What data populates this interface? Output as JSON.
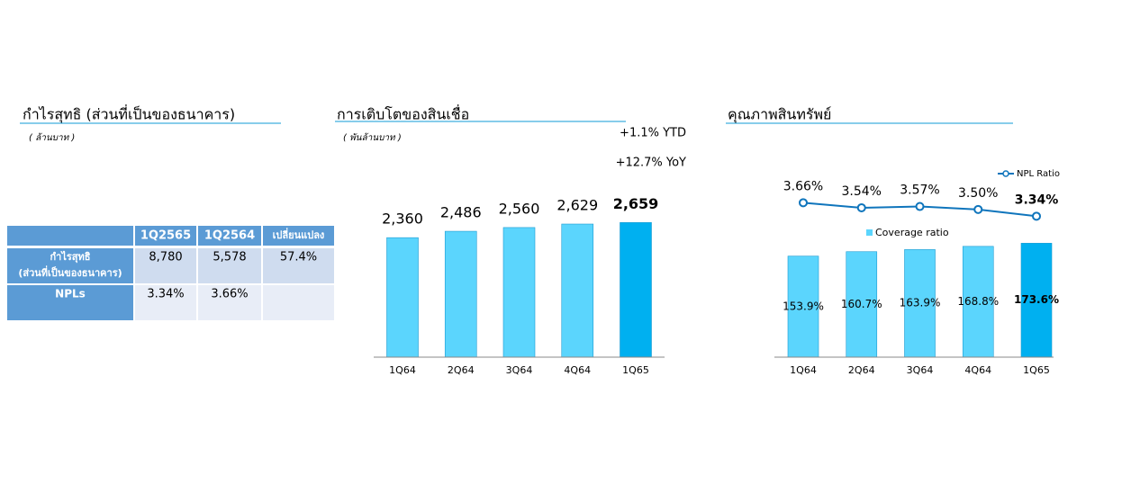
{
  "summary": {
    "title": "กำไรสุทธิ (ส่วนที่เป็นของธนาคาร)",
    "unit": "( ล้านบาท )",
    "table": {
      "header": [
        "1Q2565",
        "1Q2564",
        "เปลี่ยนแปลง"
      ],
      "rows": [
        [
          [
            "กำไรสุทธิ",
            "(ส่วนที่เป็นของธนาคาร)"
          ],
          "8,780",
          "5,578",
          "57.4%"
        ],
        [
          "NPLs",
          "3.34%",
          "3.66%"
        ]
      ]
    }
  },
  "chart_data": [
    {
      "type": "bar",
      "title": "การเติบโตของสินเชื่อ",
      "subtitle": "( พันล้านบาท )",
      "annotations": [
        "+1.1%  YTD",
        "+12.7%  YoY"
      ],
      "categories": [
        "1Q64",
        "2Q64",
        "3Q64",
        "4Q64",
        "1Q65"
      ],
      "values": [
        2360,
        2486,
        2560,
        2629,
        2659
      ],
      "value_labels": [
        "2,360",
        "2,486",
        "2,560",
        "2,629",
        "2,659"
      ],
      "colors": [
        "#5bd5fd",
        "#5bd5fd",
        "#5bd5fd",
        "#5bd5fd",
        "#00b0f0"
      ],
      "ylim": [
        0,
        3500
      ]
    },
    {
      "type": "bar-line",
      "title": "คุณภาพสินทรัพย์",
      "categories": [
        "1Q64",
        "2Q64",
        "3Q64",
        "4Q64",
        "1Q65"
      ],
      "series": [
        {
          "name": "Coverage ratio",
          "color": "#5bd5fd",
          "colors": [
            "#5bd5fd",
            "#5bd5fd",
            "#5bd5fd",
            "#5bd5fd",
            "#00b0f0"
          ],
          "values": [
            153.9,
            160.7,
            163.9,
            168.8,
            173.6
          ],
          "value_labels": [
            "153.9%",
            "160.7%",
            "163.9%",
            "168.8%",
            "173.6%"
          ]
        },
        {
          "name": "NPL Ratio",
          "color": "#0f75bc",
          "axis": "y2",
          "values": [
            3.66,
            3.54,
            3.57,
            3.5,
            3.34
          ],
          "value_labels": [
            "3.66%",
            "3.54%",
            "3.57%",
            "3.50%",
            "3.34%"
          ]
        }
      ],
      "ylim": [
        0,
        270
      ],
      "y2lim": [
        0,
        4.2
      ]
    }
  ]
}
